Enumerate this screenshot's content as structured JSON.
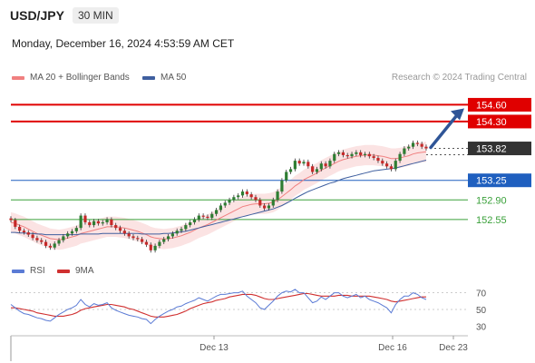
{
  "header": {
    "symbol": "USD/JPY",
    "interval": "30 MIN",
    "datetime": "Monday, December 16, 2024 4:53:59 AM CET",
    "credit": "Research © 2024 Trading Central"
  },
  "colors": {
    "bollinger_band": "#f9d9d9",
    "ma20": "#f08080",
    "ma50": "#3f5f9f",
    "resistance": "#e00000",
    "support_strong": "#1f5fbf",
    "support_weak": "#3aa03a",
    "current_price": "#333333",
    "arrow": "#2f5597",
    "rsi": "#5b7bd5",
    "rsi_ma": "#d03030",
    "candle_up": "#2e7d32",
    "candle_down": "#c62828"
  },
  "chart_data": [
    {
      "type": "candlestick",
      "legend": [
        {
          "name": "MA 20 + Bollinger Bands",
          "color": "#f08080"
        },
        {
          "name": "MA 50",
          "color": "#3f5f9f"
        }
      ],
      "ylim": [
        151.9,
        154.85
      ],
      "levels": [
        {
          "value": 154.6,
          "label": "154.60",
          "kind": "resistance"
        },
        {
          "value": 154.3,
          "label": "154.30",
          "kind": "resistance"
        },
        {
          "value": 153.82,
          "label": "153.82",
          "kind": "current"
        },
        {
          "value": 153.25,
          "label": "153.25",
          "kind": "support_strong"
        },
        {
          "value": 152.9,
          "label": "152.90",
          "kind": "support_weak"
        },
        {
          "value": 152.55,
          "label": "152.55",
          "kind": "support_weak"
        }
      ],
      "series": [
        {
          "name": "Close",
          "values": [
            152.54,
            152.42,
            152.35,
            152.32,
            152.28,
            152.22,
            152.18,
            152.15,
            152.08,
            152.05,
            152.12,
            152.18,
            152.25,
            152.3,
            152.34,
            152.4,
            152.62,
            152.5,
            152.45,
            152.52,
            152.48,
            152.5,
            152.55,
            152.45,
            152.4,
            152.35,
            152.3,
            152.25,
            152.22,
            152.2,
            152.15,
            152.1,
            152.0,
            152.08,
            152.15,
            152.2,
            152.25,
            152.3,
            152.35,
            152.38,
            152.45,
            152.5,
            152.55,
            152.62,
            152.6,
            152.58,
            152.65,
            152.72,
            152.8,
            152.85,
            152.9,
            152.95,
            152.98,
            153.05,
            153.0,
            152.95,
            152.9,
            152.8,
            152.75,
            152.8,
            152.9,
            153.05,
            153.25,
            153.4,
            153.45,
            153.6,
            153.55,
            153.58,
            153.5,
            153.4,
            153.45,
            153.55,
            153.5,
            153.6,
            153.72,
            153.75,
            153.7,
            153.68,
            153.72,
            153.75,
            153.7,
            153.72,
            153.68,
            153.65,
            153.6,
            153.55,
            153.5,
            153.45,
            153.6,
            153.72,
            153.82,
            153.85,
            153.92,
            153.9,
            153.85,
            153.82
          ]
        }
      ],
      "moving_averages": {
        "ma20": [
          152.5,
          152.48,
          152.45,
          152.42,
          152.38,
          152.34,
          152.3,
          152.27,
          152.24,
          152.21,
          152.2,
          152.19,
          152.2,
          152.22,
          152.24,
          152.26,
          152.3,
          152.32,
          152.34,
          152.36,
          152.38,
          152.4,
          152.42,
          152.42,
          152.42,
          152.41,
          152.4,
          152.38,
          152.36,
          152.34,
          152.31,
          152.28,
          152.24,
          152.22,
          152.21,
          152.2,
          152.21,
          152.22,
          152.24,
          152.26,
          152.29,
          152.32,
          152.36,
          152.4,
          152.43,
          152.46,
          152.5,
          152.54,
          152.58,
          152.62,
          152.66,
          152.7,
          152.74,
          152.78,
          152.8,
          152.82,
          152.83,
          152.83,
          152.83,
          152.84,
          152.86,
          152.9,
          152.96,
          153.02,
          153.08,
          153.15,
          153.2,
          153.26,
          153.3,
          153.34,
          153.38,
          153.43,
          153.47,
          153.51,
          153.55,
          153.59,
          153.62,
          153.64,
          153.66,
          153.68,
          153.69,
          153.7,
          153.7,
          153.7,
          153.69,
          153.68,
          153.66,
          153.64,
          153.64,
          153.65,
          153.67,
          153.69,
          153.72,
          153.74,
          153.75,
          153.76
        ],
        "ma50": [
          152.32,
          152.32,
          152.31,
          152.31,
          152.3,
          152.3,
          152.29,
          152.29,
          152.28,
          152.28,
          152.28,
          152.28,
          152.28,
          152.28,
          152.28,
          152.28,
          152.29,
          152.29,
          152.29,
          152.29,
          152.29,
          152.3,
          152.3,
          152.3,
          152.3,
          152.3,
          152.3,
          152.3,
          152.3,
          152.3,
          152.29,
          152.29,
          152.29,
          152.29,
          152.29,
          152.3,
          152.3,
          152.31,
          152.32,
          152.33,
          152.34,
          152.36,
          152.38,
          152.4,
          152.42,
          152.44,
          152.46,
          152.48,
          152.5,
          152.52,
          152.54,
          152.56,
          152.58,
          152.6,
          152.62,
          152.64,
          152.66,
          152.68,
          152.7,
          152.72,
          152.74,
          152.77,
          152.8,
          152.84,
          152.88,
          152.93,
          152.97,
          153.01,
          153.05,
          153.08,
          153.11,
          153.14,
          153.17,
          153.2,
          153.22,
          153.25,
          153.28,
          153.3,
          153.32,
          153.34,
          153.36,
          153.38,
          153.4,
          153.42,
          153.43,
          153.44,
          153.45,
          153.46,
          153.47,
          153.49,
          153.51,
          153.53,
          153.55,
          153.57,
          153.59,
          153.61
        ]
      },
      "bollinger_width": 0.18,
      "forecast_arrow": {
        "from": 153.82,
        "to": 154.6
      }
    },
    {
      "type": "line",
      "legend": [
        {
          "name": "RSI",
          "color": "#5b7bd5"
        },
        {
          "name": "9MA",
          "color": "#d03030"
        }
      ],
      "ylim": [
        25,
        75
      ],
      "yticks": [
        "70",
        "50",
        "30"
      ],
      "xticks": [
        "Dec 13",
        "Dec 16",
        "Dec 23"
      ],
      "series": [
        {
          "name": "RSI",
          "values": [
            56,
            52,
            48,
            45,
            44,
            42,
            40,
            39,
            37,
            36,
            40,
            44,
            47,
            50,
            52,
            55,
            62,
            56,
            53,
            57,
            55,
            56,
            58,
            52,
            49,
            47,
            45,
            43,
            42,
            41,
            39,
            38,
            33,
            38,
            42,
            45,
            48,
            50,
            53,
            54,
            57,
            59,
            61,
            64,
            62,
            60,
            63,
            66,
            68,
            68,
            69,
            70,
            70,
            72,
            66,
            62,
            58,
            52,
            50,
            55,
            60,
            66,
            70,
            72,
            71,
            74,
            70,
            70,
            64,
            58,
            60,
            65,
            62,
            66,
            70,
            70,
            66,
            64,
            66,
            68,
            64,
            66,
            62,
            60,
            58,
            55,
            52,
            46,
            56,
            62,
            66,
            66,
            70,
            68,
            64,
            62
          ]
        },
        {
          "name": "9MA",
          "values": [
            52,
            52,
            51,
            50,
            49,
            48,
            46,
            45,
            44,
            43,
            42,
            42,
            42,
            43,
            44,
            46,
            49,
            51,
            52,
            53,
            54,
            55,
            56,
            56,
            55,
            54,
            53,
            51,
            50,
            48,
            46,
            44,
            42,
            41,
            41,
            41,
            42,
            43,
            44,
            46,
            48,
            51,
            53,
            55,
            57,
            58,
            59,
            61,
            62,
            63,
            65,
            66,
            67,
            68,
            68,
            68,
            67,
            65,
            63,
            62,
            62,
            63,
            64,
            65,
            66,
            67,
            68,
            69,
            69,
            68,
            67,
            66,
            66,
            66,
            66,
            67,
            67,
            67,
            66,
            66,
            66,
            66,
            66,
            65,
            64,
            63,
            62,
            60,
            59,
            60,
            61,
            62,
            63,
            64,
            65,
            65
          ]
        }
      ]
    }
  ]
}
